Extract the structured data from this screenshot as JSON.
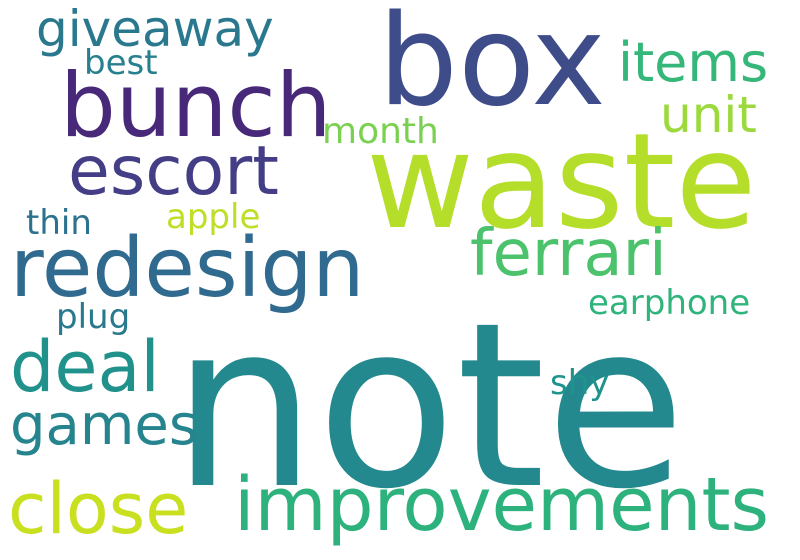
{
  "words": [
    {
      "text": "note",
      "color": "#23898e"
    },
    {
      "text": "waste",
      "color": "#b5de2b"
    },
    {
      "text": "box",
      "color": "#3e4c8a"
    },
    {
      "text": "improvements",
      "color": "#2db27d"
    },
    {
      "text": "redesign",
      "color": "#306a8e"
    },
    {
      "text": "bunch",
      "color": "#482878"
    },
    {
      "text": "close",
      "color": "#c8e020"
    },
    {
      "text": "ferrari",
      "color": "#4cc26c"
    },
    {
      "text": "escort",
      "color": "#433e85"
    },
    {
      "text": "deal",
      "color": "#21918c"
    },
    {
      "text": "games",
      "color": "#25848e"
    },
    {
      "text": "giveaway",
      "color": "#2a788e"
    },
    {
      "text": "items",
      "color": "#35b779"
    },
    {
      "text": "unit",
      "color": "#9bd93c"
    },
    {
      "text": "earphone",
      "color": "#2fb47c"
    },
    {
      "text": "month",
      "color": "#7ad151"
    },
    {
      "text": "best",
      "color": "#27808e"
    },
    {
      "text": "apple",
      "color": "#bddf26"
    },
    {
      "text": "thin",
      "color": "#2c728e"
    },
    {
      "text": "plug",
      "color": "#29798e"
    },
    {
      "text": "shy",
      "color": "#1f948c"
    }
  ]
}
